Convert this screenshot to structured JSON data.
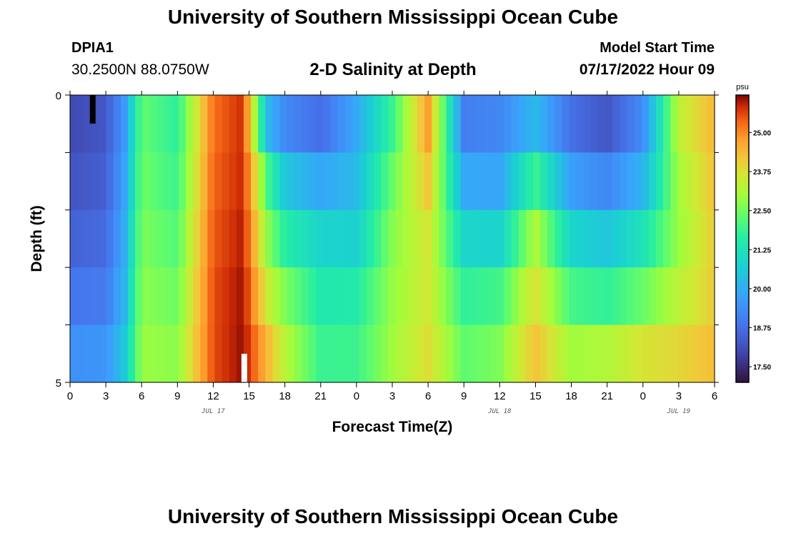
{
  "header": {
    "title": "University of Southern Mississippi Ocean Cube",
    "station": "DPIA1",
    "coords": "30.2500N  88.0750W",
    "subtitle": "2-D Salinity at Depth",
    "start_label": "Model Start Time",
    "start_value": "07/17/2022 Hour 09"
  },
  "footer": {
    "title": "University of Southern Mississippi Ocean Cube"
  },
  "chart_data": {
    "type": "heatmap",
    "xlabel": "Forecast Time(Z)",
    "ylabel": "Depth (ft)",
    "x_tick_labels": [
      "0",
      "3",
      "6",
      "9",
      "12",
      "15",
      "18",
      "21",
      "0",
      "3",
      "6",
      "9",
      "12",
      "15",
      "18",
      "21",
      "0",
      "3",
      "6"
    ],
    "date_labels": [
      {
        "label": "JUL 17",
        "at_hour": 12
      },
      {
        "label": "JUL 18",
        "at_hour": 36
      },
      {
        "label": "JUL 19",
        "at_hour": 51
      }
    ],
    "y_tick_labels": [
      "0",
      "5"
    ],
    "ylim": [
      0,
      5
    ],
    "x_range_hours": [
      0,
      54
    ],
    "layers": 5,
    "colorbar": {
      "unit": "psu",
      "min": 17.0,
      "max": 26.2,
      "tick_labels": [
        "25.00",
        "23.75",
        "22.50",
        "21.25",
        "20.00",
        "18.75",
        "17.50"
      ],
      "tick_values": [
        25.0,
        23.75,
        22.5,
        21.25,
        20.0,
        18.75,
        17.5
      ]
    },
    "time_hours": [
      0,
      3,
      4.5,
      6,
      9,
      12,
      14.5,
      16.5,
      18,
      21,
      24,
      27,
      30,
      33,
      36,
      39,
      42,
      45,
      48,
      51,
      54
    ],
    "salinity": [
      [
        17.9,
        18.2,
        19.4,
        22.3,
        21.6,
        25.2,
        25.8,
        19.0,
        18.5,
        18.0,
        19.5,
        21.5,
        25.0,
        18.6,
        18.8,
        19.5,
        18.3,
        17.9,
        19.0,
        23.5,
        24.5
      ],
      [
        18.1,
        18.4,
        19.6,
        22.4,
        21.8,
        25.3,
        25.8,
        21.5,
        20.0,
        19.4,
        20.3,
        22.2,
        24.5,
        19.5,
        19.6,
        21.0,
        19.2,
        18.6,
        19.6,
        23.2,
        24.3
      ],
      [
        18.3,
        18.5,
        19.8,
        22.5,
        22.0,
        25.4,
        25.9,
        22.6,
        21.0,
        20.3,
        20.2,
        22.6,
        23.8,
        20.3,
        20.0,
        22.8,
        20.2,
        19.8,
        20.6,
        22.8,
        24.2
      ],
      [
        18.7,
        18.8,
        20.0,
        22.7,
        22.3,
        25.5,
        26.0,
        23.0,
        22.2,
        21.4,
        21.3,
        22.8,
        23.5,
        21.5,
        21.6,
        23.5,
        21.5,
        21.2,
        21.9,
        23.0,
        24.0
      ],
      [
        19.0,
        19.1,
        20.2,
        22.8,
        22.6,
        25.6,
        26.1,
        24.0,
        23.0,
        21.5,
        21.8,
        22.9,
        23.7,
        22.0,
        22.3,
        24.0,
        22.5,
        22.3,
        22.9,
        23.6,
        24.2
      ],
      [
        19.8,
        19.9,
        20.8,
        23.0,
        22.9,
        25.5,
        26.1,
        24.8,
        23.5,
        22.2,
        22.0,
        23.0,
        23.9,
        22.6,
        22.9,
        24.5,
        23.4,
        24.0,
        24.5,
        24.2,
        24.4
      ]
    ],
    "markers": [
      {
        "color": "#000000",
        "at_hour": 1.9,
        "layer": 0
      },
      {
        "color": "#ffffff",
        "at_hour": 14.6,
        "layer": 4
      }
    ]
  }
}
